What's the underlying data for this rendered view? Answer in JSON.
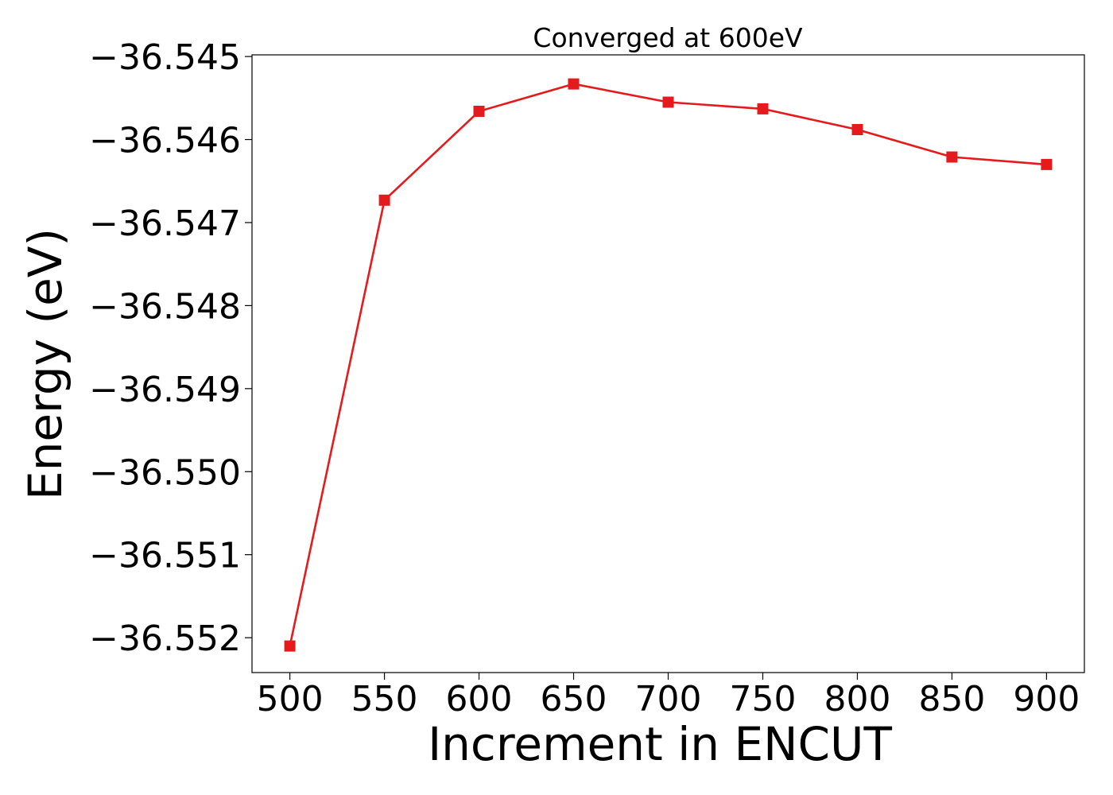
{
  "chart_data": {
    "type": "line",
    "title": "Converged at 600eV",
    "xlabel": "Increment in ENCUT",
    "ylabel": "Energy (eV)",
    "x": [
      500,
      550,
      600,
      650,
      700,
      750,
      800,
      850,
      900
    ],
    "series": [
      {
        "values": [
          -36.5521,
          -36.54673,
          -36.54566,
          -36.54533,
          -36.54555,
          -36.54563,
          -36.54588,
          -36.54621,
          -36.5463
        ],
        "color": "#e41a1c",
        "marker": "square"
      }
    ],
    "xticks": [
      500,
      550,
      600,
      650,
      700,
      750,
      800,
      850,
      900
    ],
    "xtick_labels": [
      "500",
      "550",
      "600",
      "650",
      "700",
      "750",
      "800",
      "850",
      "900"
    ],
    "yticks": [
      -36.545,
      -36.546,
      -36.547,
      -36.548,
      -36.549,
      -36.55,
      -36.551,
      -36.552
    ],
    "ytick_labels": [
      "−36.545",
      "−36.546",
      "−36.547",
      "−36.548",
      "−36.549",
      "−36.550",
      "−36.551",
      "−36.552"
    ],
    "xlim": [
      480,
      920
    ],
    "ylim": [
      -36.55242,
      -36.54498
    ],
    "grid": false,
    "legend": "none"
  }
}
